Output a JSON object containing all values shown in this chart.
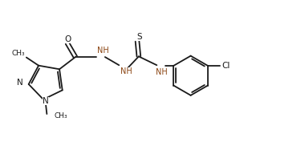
{
  "bg_color": "#ffffff",
  "bond_color": "#1a1a1a",
  "label_color": "#1a1a1a",
  "nh_color": "#8B4513",
  "line_width": 1.3,
  "font_size": 7.5,
  "figsize": [
    3.8,
    1.82
  ],
  "dpi": 100,
  "xlim": [
    0,
    10.5
  ],
  "ylim": [
    0,
    5.0
  ]
}
